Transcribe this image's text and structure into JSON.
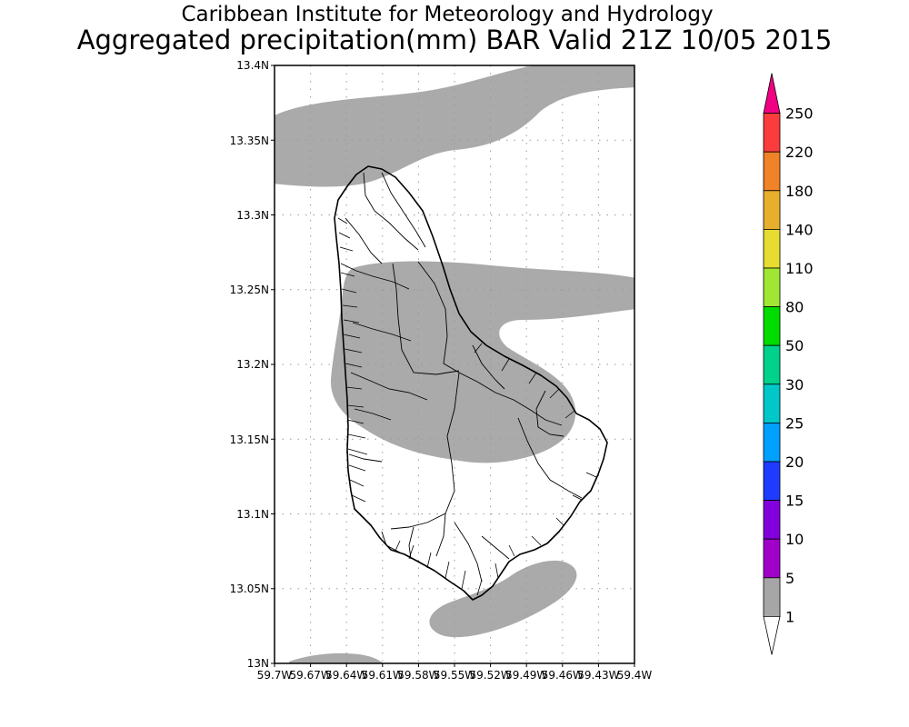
{
  "header": {
    "institute": "Caribbean Institute for Meteorology and Hydrology",
    "product": "Aggregated precipitation(mm) BAR Valid 21Z 10/05 2015"
  },
  "map": {
    "region": "Barbados",
    "lat_range": [
      13.0,
      13.4
    ],
    "lon_range": [
      -59.7,
      -59.4
    ],
    "grid": true,
    "lat_ticks": [
      "13N",
      "13.05N",
      "13.1N",
      "13.15N",
      "13.2N",
      "13.25N",
      "13.3N",
      "13.35N",
      "13.4N"
    ],
    "lon_ticks": [
      "59.7W",
      "59.67W",
      "59.64W",
      "59.61W",
      "59.58W",
      "59.55W",
      "59.52W",
      "59.49W",
      "59.46W",
      "59.43W",
      "59.4W"
    ],
    "precip_fill_color": "#aaaaaa"
  },
  "colorbar": {
    "unit": "mm",
    "levels": [
      "1",
      "5",
      "10",
      "15",
      "20",
      "25",
      "30",
      "50",
      "80",
      "110",
      "140",
      "180",
      "220",
      "250"
    ],
    "colors": [
      "#ffffff",
      "#a6a6a6",
      "#a000c8",
      "#8200dc",
      "#1e3cff",
      "#00a0ff",
      "#00c8c8",
      "#00d28c",
      "#00dc00",
      "#a0e632",
      "#e6dc32",
      "#e6af2d",
      "#f08228",
      "#fa3c3c",
      "#f00082"
    ]
  }
}
